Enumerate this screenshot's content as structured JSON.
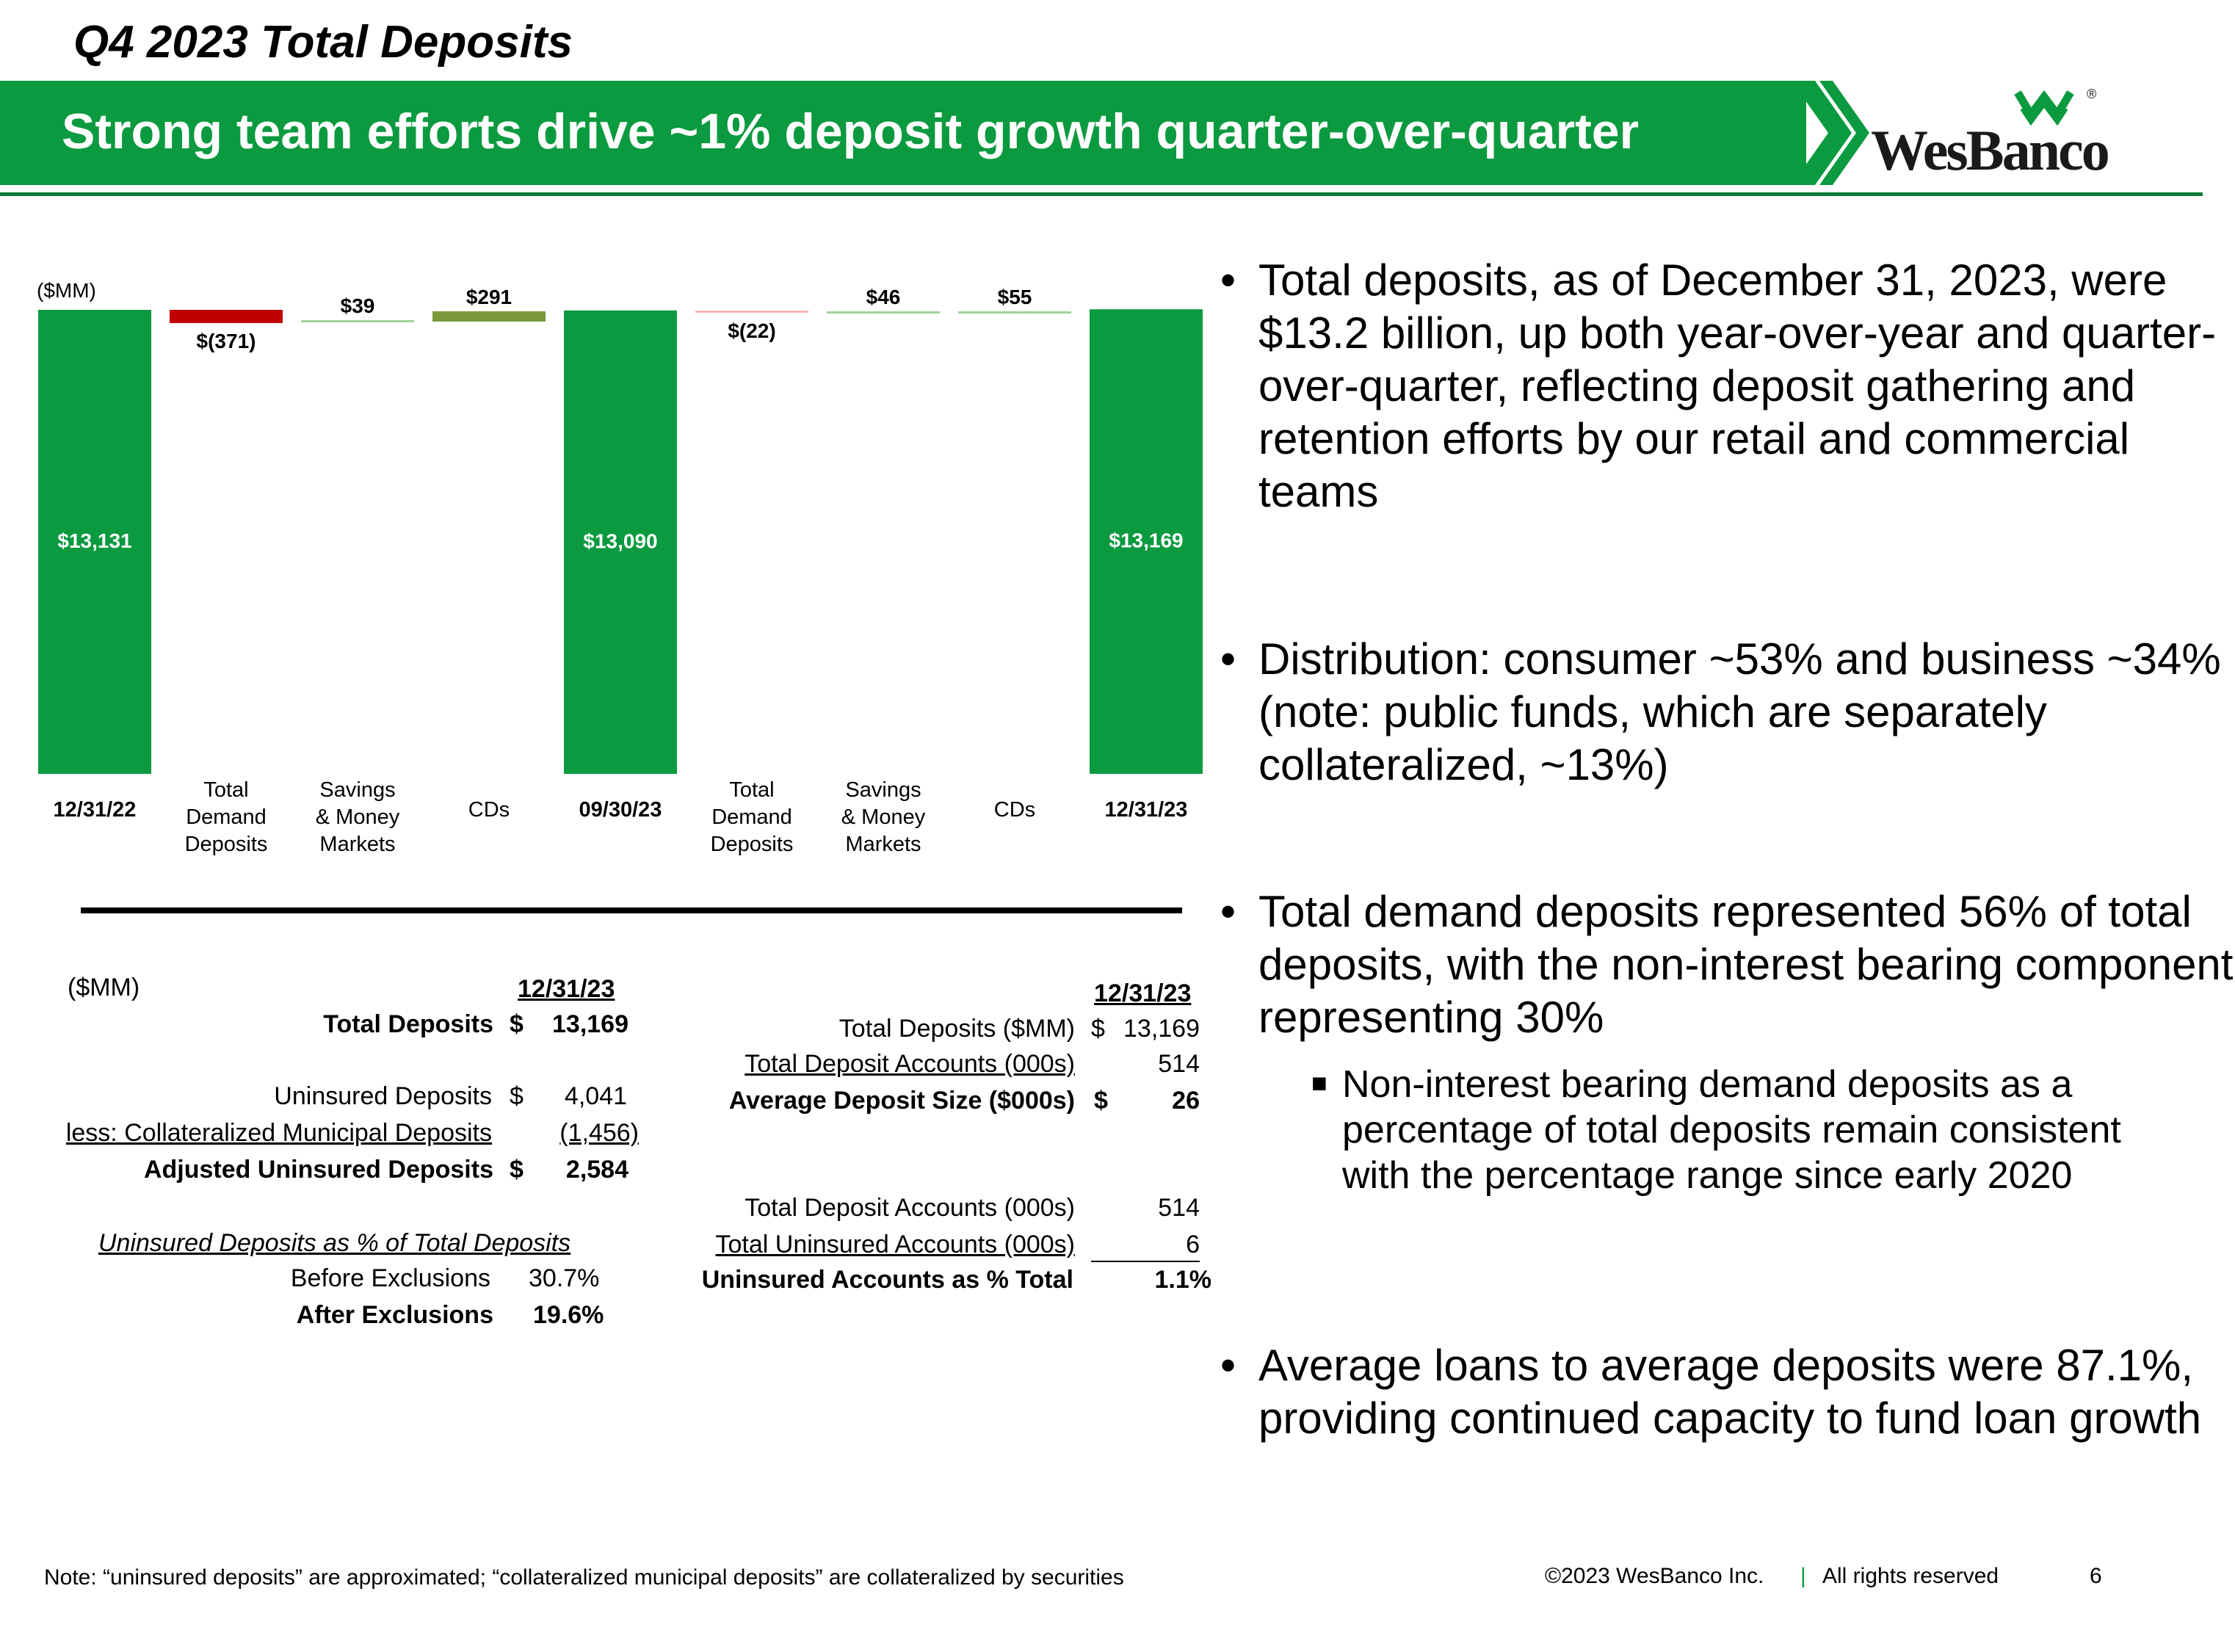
{
  "header": {
    "kicker": "Q4 2023 Total Deposits",
    "banner_title": "Strong team efforts drive ~1% deposit growth quarter-over-quarter",
    "logo_text": "WesBanco",
    "logo_reg": "®"
  },
  "colors": {
    "brand_green": "#0b9a3f",
    "negative_red": "#c00000",
    "olive": "#7a9a3a",
    "light_green": "#9fd39a",
    "pink": "#f4b6b6"
  },
  "chart_data": {
    "type": "bar",
    "subtype": "waterfall",
    "unit_label": "($MM)",
    "categories": [
      "12/31/22",
      "Total Demand Deposits",
      "Savings & Money Markets",
      "CDs",
      "09/30/23",
      "Total Demand Deposits",
      "Savings & Money Markets",
      "CDs",
      "12/31/23"
    ],
    "category_lines": [
      [
        "12/31/22"
      ],
      [
        "Total",
        "Demand",
        "Deposits"
      ],
      [
        "Savings",
        "& Money",
        "Markets"
      ],
      [
        "CDs"
      ],
      [
        "09/30/23"
      ],
      [
        "Total",
        "Demand",
        "Deposits"
      ],
      [
        "Savings",
        "& Money",
        "Markets"
      ],
      [
        "CDs"
      ],
      [
        "12/31/23"
      ]
    ],
    "values": [
      13131,
      -371,
      39,
      291,
      13090,
      -22,
      46,
      55,
      13169
    ],
    "kinds": [
      "total",
      "delta",
      "delta",
      "delta",
      "total",
      "delta",
      "delta",
      "delta",
      "total"
    ],
    "value_labels": [
      "$13,131",
      "$(371)",
      "$39",
      "$291",
      "$13,090",
      "$(22)",
      "$46",
      "$55",
      "$13,169"
    ]
  },
  "left_table": {
    "unit": "($MM)",
    "date_header": "12/31/23",
    "rows": [
      {
        "label": "Total Deposits",
        "cur": "$",
        "value": "13,169"
      },
      {
        "label": "Uninsured Deposits",
        "cur": "$",
        "value": "4,041"
      },
      {
        "label": "less: Collateralized Municipal Deposits",
        "cur": "",
        "value": "(1,456)"
      },
      {
        "label": "Adjusted Uninsured Deposits",
        "cur": "$",
        "value": "2,584"
      }
    ],
    "pct_heading": "Uninsured Deposits as % of Total Deposits",
    "pct_rows": [
      {
        "label": "Before Exclusions",
        "value": "30.7%"
      },
      {
        "label": "After Exclusions",
        "value": "19.6%"
      }
    ]
  },
  "right_table": {
    "date_header": "12/31/23",
    "rows": [
      {
        "label": "Total Deposits ($MM)",
        "cur": "$",
        "value": "13,169"
      },
      {
        "label": "Total Deposit Accounts (000s)",
        "cur": "",
        "value": "514"
      },
      {
        "label": "Average Deposit Size ($000s)",
        "cur": "$",
        "value": "26"
      },
      {
        "label": "Total Deposit Accounts (000s)",
        "cur": "",
        "value": "514"
      },
      {
        "label": "Total Uninsured Accounts (000s)",
        "cur": "",
        "value": "6"
      },
      {
        "label": "Uninsured Accounts as % Total",
        "cur": "",
        "value": "1.1%"
      }
    ]
  },
  "bullets": [
    "Total deposits, as of December 31, 2023, were $13.2 billion, up both year-over-year and quarter-over-quarter, reflecting deposit gathering and retention efforts by our retail and commercial teams",
    "Distribution: consumer ~53% and business ~34% (note: public funds, which are separately collateralized, ~13%)",
    "Total demand deposits represented 56% of total deposits, with the non-interest bearing component representing 30%",
    "Average loans to average deposits were 87.1%, providing continued capacity to fund loan growth"
  ],
  "sub_bullet": "Non-interest bearing demand deposits as a percentage of total deposits remain consistent with the percentage range since early 2020",
  "footer": {
    "note": "Note: “uninsured deposits” are approximated; “collateralized municipal deposits” are collateralized by securities",
    "copyright": "©2023 WesBanco Inc.",
    "separator": "|",
    "rights": "All rights reserved",
    "page": "6"
  }
}
